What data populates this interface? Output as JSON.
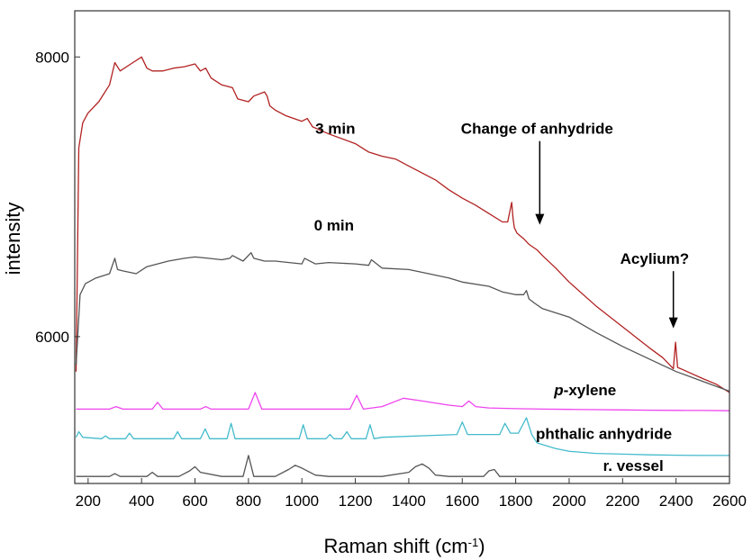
{
  "chart_data": {
    "type": "line",
    "xlabel": "Raman shift (cm",
    "xlabel_sup": "-1",
    "xlabel_close": ")",
    "ylabel": "intensity",
    "xlim": [
      150,
      2600
    ],
    "ylim": [
      4950,
      8330
    ],
    "x_ticks": [
      200,
      400,
      600,
      800,
      1000,
      1200,
      1400,
      1600,
      1800,
      2000,
      2200,
      2400,
      2600
    ],
    "y_ticks": [
      6000,
      8000
    ],
    "series": [
      {
        "name": "3 min",
        "color": "#b22222",
        "x": [
          155,
          165,
          180,
          200,
          240,
          280,
          300,
          320,
          360,
          400,
          420,
          440,
          480,
          520,
          560,
          600,
          620,
          640,
          660,
          700,
          740,
          760,
          800,
          820,
          860,
          870,
          880,
          900,
          940,
          1000,
          1020,
          1040,
          1100,
          1200,
          1250,
          1300,
          1350,
          1400,
          1450,
          1500,
          1550,
          1600,
          1650,
          1700,
          1750,
          1770,
          1785,
          1790,
          1795,
          1805,
          1830,
          1850,
          1880,
          1900,
          1950,
          2000,
          2100,
          2200,
          2300,
          2350,
          2390,
          2398,
          2406,
          2430,
          2500,
          2550,
          2600
        ],
        "y": [
          5750,
          7350,
          7530,
          7600,
          7680,
          7800,
          7960,
          7900,
          7950,
          8000,
          7920,
          7900,
          7900,
          7920,
          7930,
          7950,
          7900,
          7920,
          7850,
          7800,
          7780,
          7700,
          7680,
          7720,
          7750,
          7720,
          7650,
          7620,
          7580,
          7540,
          7560,
          7500,
          7450,
          7380,
          7320,
          7290,
          7270,
          7220,
          7170,
          7120,
          7050,
          6990,
          6940,
          6880,
          6820,
          6820,
          6960,
          6850,
          6780,
          6740,
          6700,
          6660,
          6620,
          6580,
          6490,
          6390,
          6220,
          6070,
          5920,
          5850,
          5770,
          5960,
          5780,
          5760,
          5700,
          5660,
          5600
        ]
      },
      {
        "name": "0 min",
        "color": "#555555",
        "x": [
          155,
          170,
          190,
          230,
          280,
          300,
          310,
          330,
          380,
          420,
          460,
          500,
          560,
          600,
          650,
          700,
          730,
          740,
          780,
          810,
          820,
          860,
          900,
          1000,
          1010,
          1050,
          1100,
          1200,
          1250,
          1260,
          1300,
          1400,
          1450,
          1500,
          1550,
          1600,
          1700,
          1750,
          1800,
          1830,
          1840,
          1850,
          1870,
          1900,
          2000,
          2100,
          2200,
          2300,
          2400,
          2500,
          2600
        ],
        "y": [
          5800,
          6300,
          6380,
          6420,
          6450,
          6560,
          6480,
          6470,
          6450,
          6500,
          6520,
          6540,
          6560,
          6570,
          6560,
          6550,
          6560,
          6580,
          6540,
          6600,
          6560,
          6540,
          6540,
          6520,
          6560,
          6520,
          6530,
          6520,
          6510,
          6550,
          6490,
          6480,
          6460,
          6440,
          6420,
          6390,
          6360,
          6320,
          6300,
          6300,
          6330,
          6270,
          6240,
          6200,
          6140,
          6030,
          5930,
          5840,
          5750,
          5680,
          5610
        ]
      },
      {
        "name": "p-xylene",
        "color": "#ee44ee",
        "x": [
          155,
          280,
          305,
          330,
          440,
          460,
          480,
          620,
          640,
          660,
          800,
          825,
          850,
          1000,
          1180,
          1205,
          1230,
          1300,
          1380,
          1450,
          1550,
          1600,
          1625,
          1650,
          1700,
          1800,
          1900,
          2000,
          2100,
          2200,
          2300,
          2400,
          2500,
          2600
        ],
        "y": [
          5482,
          5482,
          5500,
          5482,
          5482,
          5530,
          5482,
          5482,
          5500,
          5482,
          5482,
          5600,
          5482,
          5482,
          5482,
          5580,
          5482,
          5500,
          5560,
          5540,
          5510,
          5500,
          5540,
          5500,
          5490,
          5485,
          5482,
          5480,
          5478,
          5476,
          5474,
          5473,
          5472,
          5470
        ]
      },
      {
        "name": "phthalic anhydride",
        "color": "#44bbcc",
        "x": [
          155,
          165,
          180,
          250,
          265,
          280,
          340,
          355,
          370,
          520,
          535,
          550,
          620,
          638,
          655,
          720,
          735,
          750,
          990,
          1005,
          1020,
          1090,
          1105,
          1120,
          1150,
          1168,
          1185,
          1240,
          1255,
          1270,
          1300,
          1580,
          1600,
          1620,
          1740,
          1760,
          1780,
          1810,
          1840,
          1860,
          1880,
          1950,
          2000,
          2100,
          2200,
          2300,
          2400,
          2500,
          2600
        ],
        "y": [
          5280,
          5320,
          5280,
          5270,
          5290,
          5270,
          5270,
          5310,
          5270,
          5270,
          5320,
          5270,
          5270,
          5340,
          5270,
          5270,
          5380,
          5270,
          5270,
          5370,
          5270,
          5270,
          5300,
          5270,
          5270,
          5320,
          5270,
          5270,
          5370,
          5270,
          5280,
          5300,
          5390,
          5300,
          5300,
          5380,
          5310,
          5310,
          5420,
          5300,
          5240,
          5200,
          5180,
          5165,
          5160,
          5155,
          5152,
          5150,
          5150
        ]
      },
      {
        "name": "r. vessel",
        "color": "#555555",
        "x": [
          155,
          280,
          300,
          320,
          420,
          440,
          460,
          540,
          560,
          580,
          600,
          620,
          700,
          780,
          800,
          820,
          900,
          950,
          975,
          1000,
          1050,
          1100,
          1300,
          1400,
          1425,
          1450,
          1475,
          1500,
          1550,
          1680,
          1700,
          1720,
          1740,
          1800,
          1900,
          2000,
          2200,
          2400,
          2600
        ],
        "y": [
          5000,
          5000,
          5020,
          5000,
          5000,
          5030,
          5000,
          5000,
          5020,
          5040,
          5070,
          5030,
          5000,
          5000,
          5150,
          5000,
          5000,
          5050,
          5080,
          5060,
          5010,
          5000,
          5000,
          5030,
          5070,
          5090,
          5060,
          5010,
          5000,
          5000,
          5040,
          5050,
          5000,
          5000,
          5000,
          5000,
          5000,
          5000,
          5000
        ]
      }
    ],
    "annotations": [
      {
        "text": "3 min",
        "x": 1125,
        "y": 7450
      },
      {
        "text": "0 min",
        "x": 1120,
        "y": 6760
      },
      {
        "text": "Change of anhydride",
        "x": 1880,
        "y": 7450,
        "arrow_to_x": 1890,
        "arrow_to_y": 6800
      },
      {
        "text": "Acylium?",
        "x": 2320,
        "y": 6520,
        "arrow_to_x": 2390,
        "arrow_to_y": 6060
      },
      {
        "text": "p-xylene",
        "x": 2060,
        "y": 5580
      },
      {
        "text": "phthalic anhydride",
        "x": 2130,
        "y": 5270
      },
      {
        "text": "r. vessel",
        "x": 2240,
        "y": 5040
      }
    ]
  }
}
